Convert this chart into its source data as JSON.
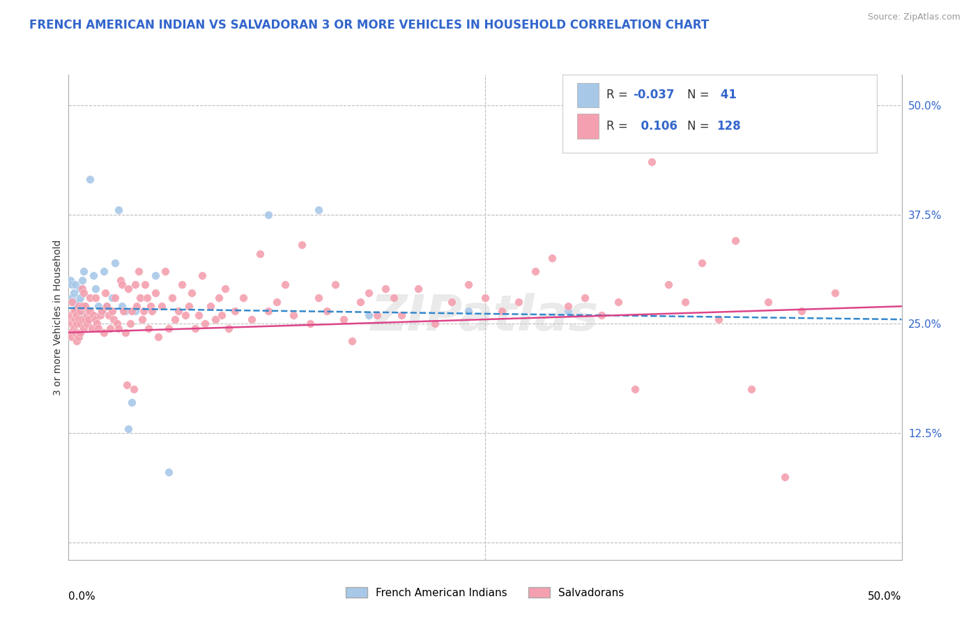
{
  "title": "FRENCH AMERICAN INDIAN VS SALVADORAN 3 OR MORE VEHICLES IN HOUSEHOLD CORRELATION CHART",
  "source": "Source: ZipAtlas.com",
  "ylabel": "3 or more Vehicles in Household",
  "yticks": [
    0.0,
    0.125,
    0.25,
    0.375,
    0.5
  ],
  "ytick_labels": [
    "",
    "12.5%",
    "25.0%",
    "37.5%",
    "50.0%"
  ],
  "xlim": [
    0.0,
    0.5
  ],
  "ylim": [
    -0.02,
    0.535
  ],
  "blue_scatter": [
    [
      0.001,
      0.3
    ],
    [
      0.002,
      0.295
    ],
    [
      0.002,
      0.28
    ],
    [
      0.003,
      0.285
    ],
    [
      0.003,
      0.275
    ],
    [
      0.004,
      0.265
    ],
    [
      0.004,
      0.295
    ],
    [
      0.005,
      0.27
    ],
    [
      0.005,
      0.265
    ],
    [
      0.006,
      0.26
    ],
    [
      0.006,
      0.275
    ],
    [
      0.007,
      0.29
    ],
    [
      0.007,
      0.28
    ],
    [
      0.008,
      0.265
    ],
    [
      0.008,
      0.3
    ],
    [
      0.009,
      0.31
    ],
    [
      0.01,
      0.27
    ],
    [
      0.011,
      0.265
    ],
    [
      0.012,
      0.26
    ],
    [
      0.013,
      0.415
    ],
    [
      0.015,
      0.305
    ],
    [
      0.016,
      0.29
    ],
    [
      0.018,
      0.27
    ],
    [
      0.02,
      0.265
    ],
    [
      0.021,
      0.31
    ],
    [
      0.023,
      0.27
    ],
    [
      0.026,
      0.28
    ],
    [
      0.028,
      0.32
    ],
    [
      0.03,
      0.38
    ],
    [
      0.032,
      0.27
    ],
    [
      0.034,
      0.265
    ],
    [
      0.036,
      0.13
    ],
    [
      0.038,
      0.16
    ],
    [
      0.04,
      0.265
    ],
    [
      0.052,
      0.305
    ],
    [
      0.06,
      0.08
    ],
    [
      0.12,
      0.375
    ],
    [
      0.15,
      0.38
    ],
    [
      0.18,
      0.26
    ],
    [
      0.24,
      0.265
    ],
    [
      0.3,
      0.265
    ]
  ],
  "pink_scatter": [
    [
      0.001,
      0.24
    ],
    [
      0.001,
      0.255
    ],
    [
      0.001,
      0.26
    ],
    [
      0.002,
      0.25
    ],
    [
      0.002,
      0.235
    ],
    [
      0.002,
      0.275
    ],
    [
      0.003,
      0.255
    ],
    [
      0.003,
      0.245
    ],
    [
      0.003,
      0.265
    ],
    [
      0.004,
      0.255
    ],
    [
      0.004,
      0.24
    ],
    [
      0.004,
      0.265
    ],
    [
      0.005,
      0.25
    ],
    [
      0.005,
      0.26
    ],
    [
      0.005,
      0.23
    ],
    [
      0.006,
      0.235
    ],
    [
      0.006,
      0.255
    ],
    [
      0.006,
      0.27
    ],
    [
      0.007,
      0.265
    ],
    [
      0.007,
      0.24
    ],
    [
      0.007,
      0.25
    ],
    [
      0.008,
      0.29
    ],
    [
      0.008,
      0.255
    ],
    [
      0.008,
      0.27
    ],
    [
      0.009,
      0.245
    ],
    [
      0.009,
      0.285
    ],
    [
      0.01,
      0.27
    ],
    [
      0.01,
      0.255
    ],
    [
      0.011,
      0.26
    ],
    [
      0.011,
      0.25
    ],
    [
      0.012,
      0.265
    ],
    [
      0.012,
      0.255
    ],
    [
      0.013,
      0.28
    ],
    [
      0.013,
      0.265
    ],
    [
      0.014,
      0.245
    ],
    [
      0.015,
      0.26
    ],
    [
      0.016,
      0.255
    ],
    [
      0.016,
      0.28
    ],
    [
      0.017,
      0.25
    ],
    [
      0.018,
      0.245
    ],
    [
      0.019,
      0.26
    ],
    [
      0.02,
      0.265
    ],
    [
      0.021,
      0.24
    ],
    [
      0.022,
      0.285
    ],
    [
      0.023,
      0.27
    ],
    [
      0.024,
      0.26
    ],
    [
      0.025,
      0.245
    ],
    [
      0.026,
      0.265
    ],
    [
      0.027,
      0.255
    ],
    [
      0.028,
      0.28
    ],
    [
      0.029,
      0.25
    ],
    [
      0.03,
      0.245
    ],
    [
      0.031,
      0.3
    ],
    [
      0.032,
      0.295
    ],
    [
      0.033,
      0.265
    ],
    [
      0.034,
      0.24
    ],
    [
      0.035,
      0.18
    ],
    [
      0.036,
      0.29
    ],
    [
      0.037,
      0.25
    ],
    [
      0.038,
      0.265
    ],
    [
      0.039,
      0.175
    ],
    [
      0.04,
      0.295
    ],
    [
      0.041,
      0.27
    ],
    [
      0.042,
      0.31
    ],
    [
      0.043,
      0.28
    ],
    [
      0.044,
      0.255
    ],
    [
      0.045,
      0.265
    ],
    [
      0.046,
      0.295
    ],
    [
      0.047,
      0.28
    ],
    [
      0.048,
      0.245
    ],
    [
      0.049,
      0.27
    ],
    [
      0.05,
      0.265
    ],
    [
      0.052,
      0.285
    ],
    [
      0.054,
      0.235
    ],
    [
      0.056,
      0.27
    ],
    [
      0.058,
      0.31
    ],
    [
      0.06,
      0.245
    ],
    [
      0.062,
      0.28
    ],
    [
      0.064,
      0.255
    ],
    [
      0.066,
      0.265
    ],
    [
      0.068,
      0.295
    ],
    [
      0.07,
      0.26
    ],
    [
      0.072,
      0.27
    ],
    [
      0.074,
      0.285
    ],
    [
      0.076,
      0.245
    ],
    [
      0.078,
      0.26
    ],
    [
      0.08,
      0.305
    ],
    [
      0.082,
      0.25
    ],
    [
      0.085,
      0.27
    ],
    [
      0.088,
      0.255
    ],
    [
      0.09,
      0.28
    ],
    [
      0.092,
      0.26
    ],
    [
      0.094,
      0.29
    ],
    [
      0.096,
      0.245
    ],
    [
      0.1,
      0.265
    ],
    [
      0.105,
      0.28
    ],
    [
      0.11,
      0.255
    ],
    [
      0.115,
      0.33
    ],
    [
      0.12,
      0.265
    ],
    [
      0.125,
      0.275
    ],
    [
      0.13,
      0.295
    ],
    [
      0.135,
      0.26
    ],
    [
      0.14,
      0.34
    ],
    [
      0.145,
      0.25
    ],
    [
      0.15,
      0.28
    ],
    [
      0.155,
      0.265
    ],
    [
      0.16,
      0.295
    ],
    [
      0.165,
      0.255
    ],
    [
      0.17,
      0.23
    ],
    [
      0.175,
      0.275
    ],
    [
      0.18,
      0.285
    ],
    [
      0.185,
      0.26
    ],
    [
      0.19,
      0.29
    ],
    [
      0.195,
      0.28
    ],
    [
      0.2,
      0.26
    ],
    [
      0.21,
      0.29
    ],
    [
      0.22,
      0.25
    ],
    [
      0.23,
      0.275
    ],
    [
      0.24,
      0.295
    ],
    [
      0.25,
      0.28
    ],
    [
      0.26,
      0.265
    ],
    [
      0.27,
      0.275
    ],
    [
      0.28,
      0.31
    ],
    [
      0.29,
      0.325
    ],
    [
      0.3,
      0.27
    ],
    [
      0.31,
      0.28
    ],
    [
      0.32,
      0.26
    ],
    [
      0.33,
      0.275
    ],
    [
      0.34,
      0.175
    ],
    [
      0.35,
      0.435
    ],
    [
      0.36,
      0.295
    ],
    [
      0.37,
      0.275
    ],
    [
      0.38,
      0.32
    ],
    [
      0.39,
      0.255
    ],
    [
      0.4,
      0.345
    ],
    [
      0.41,
      0.175
    ],
    [
      0.42,
      0.275
    ],
    [
      0.43,
      0.075
    ],
    [
      0.44,
      0.265
    ],
    [
      0.46,
      0.285
    ]
  ],
  "blue_line_x": [
    0.0,
    0.5
  ],
  "blue_line_y": [
    0.268,
    0.255
  ],
  "pink_line_x": [
    0.0,
    0.5
  ],
  "pink_line_y": [
    0.24,
    0.27
  ],
  "scatter_size": 70,
  "blue_color": "#a8c8e8",
  "pink_color": "#f4a0b0",
  "blue_line_color": "#3388cc",
  "pink_line_color": "#dd4488",
  "grid_color": "#bbbbbb",
  "watermark": "ZIPatlas",
  "title_fontsize": 12,
  "source_fontsize": 9,
  "title_color": "#3366cc",
  "legend_label_blue": "French American Indians",
  "legend_label_pink": "Salvadorans",
  "legend_value_color": "#3366cc",
  "legend_text_color": "#333333",
  "ytick_color": "#3366cc"
}
